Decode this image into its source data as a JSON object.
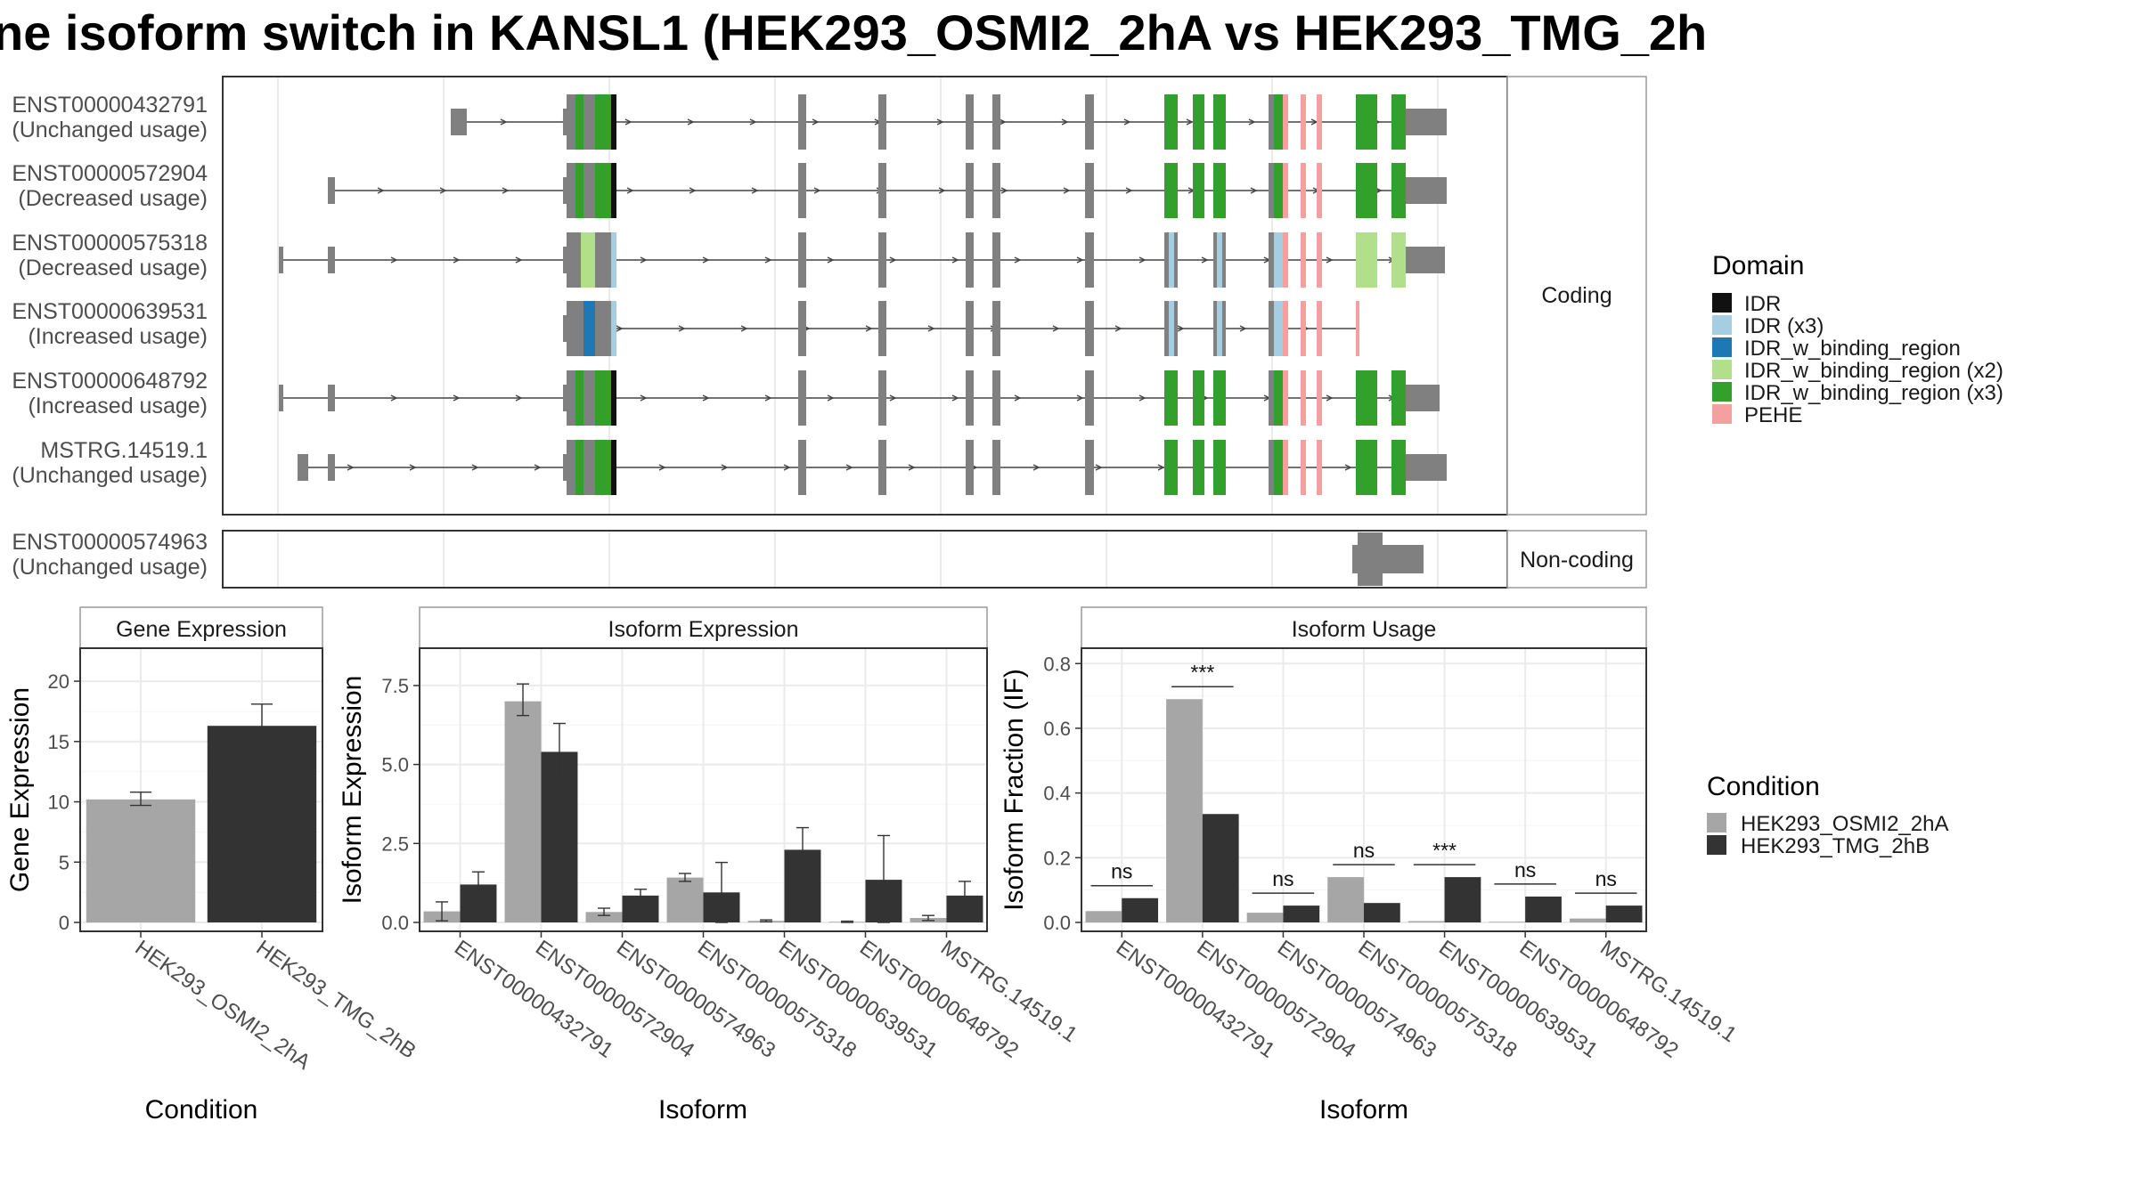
{
  "title": "ne isoform switch in KANSL1 (HEK293_OSMI2_2hA vs HEK293_TMG_2h",
  "colors": {
    "exon": "#808080",
    "IDR": "#111111",
    "IDR (x3)": "#a6cee3",
    "IDR_w_binding_region": "#1f78b4",
    "IDR_w_binding_region (x2)": "#b2df8a",
    "IDR_w_binding_region (x3)": "#33a02c",
    "PEHE": "#f4a0a0",
    "cond1": "#a6a6a6",
    "cond2": "#333333"
  },
  "transcripts": {
    "coding_label": "Coding",
    "noncoding_label": "Non-coding",
    "coding": [
      {
        "id": "ENST00000432791",
        "usage": "(Unchanged usage)"
      },
      {
        "id": "ENST00000572904",
        "usage": "(Decreased usage)"
      },
      {
        "id": "ENST00000575318",
        "usage": "(Decreased usage)"
      },
      {
        "id": "ENST00000639531",
        "usage": "(Increased usage)"
      },
      {
        "id": "ENST00000648792",
        "usage": "(Increased usage)"
      },
      {
        "id": "MSTRG.14519.1",
        "usage": "(Unchanged usage)"
      }
    ],
    "noncoding": [
      {
        "id": "ENST00000574963",
        "usage": "(Unchanged usage)"
      }
    ]
  },
  "legend_domain": {
    "title": "Domain",
    "items": [
      "IDR",
      "IDR (x3)",
      "IDR_w_binding_region",
      "IDR_w_binding_region (x2)",
      "IDR_w_binding_region (x3)",
      "PEHE"
    ]
  },
  "legend_condition": {
    "title": "Condition",
    "items": [
      "HEK293_OSMI2_2hA",
      "HEK293_TMG_2hB"
    ]
  },
  "chart_data": [
    {
      "type": "bar",
      "panel": "Gene Expression",
      "xlabel": "Condition",
      "ylabel": "Gene Expression",
      "categories": [
        "HEK293_OSMI2_2hA",
        "HEK293_TMG_2hB"
      ],
      "values": [
        10.2,
        16.3
      ],
      "errors": [
        [
          9.7,
          10.8
        ],
        [
          14.6,
          18.1
        ]
      ],
      "ylim": [
        0,
        22
      ],
      "ticks": [
        0,
        5,
        10,
        15,
        20
      ],
      "tick_labels": [
        "0",
        "5",
        "10",
        "15",
        "20"
      ]
    },
    {
      "type": "bar",
      "panel": "Isoform Expression",
      "xlabel": "Isoform",
      "ylabel": "Isoform Expression",
      "categories": [
        "ENST00000432791",
        "ENST00000572904",
        "ENST00000574963",
        "ENST00000575318",
        "ENST00000639531",
        "ENST00000648792",
        "MSTRG.14519.1"
      ],
      "series": [
        {
          "name": "HEK293_OSMI2_2hA",
          "values": [
            0.35,
            7.0,
            0.33,
            1.42,
            0.05,
            0.02,
            0.14
          ],
          "errors": [
            [
              0.05,
              0.65
            ],
            [
              6.55,
              7.55
            ],
            [
              0.22,
              0.45
            ],
            [
              1.3,
              1.55
            ],
            [
              0.02,
              0.08
            ],
            [
              0.0,
              0.04
            ],
            [
              0.06,
              0.22
            ]
          ]
        },
        {
          "name": "HEK293_TMG_2hB",
          "values": [
            1.2,
            5.4,
            0.85,
            0.95,
            2.3,
            1.35,
            0.85
          ],
          "errors": [
            [
              0.85,
              1.6
            ],
            [
              4.55,
              6.3
            ],
            [
              0.7,
              1.05
            ],
            [
              0.0,
              1.9
            ],
            [
              1.6,
              3.0
            ],
            [
              0.0,
              2.75
            ],
            [
              0.45,
              1.3
            ]
          ]
        }
      ],
      "ylim": [
        0,
        8.4
      ],
      "ticks": [
        0,
        2.5,
        5,
        7.5
      ],
      "tick_labels": [
        "0.0",
        "2.5",
        "5.0",
        "7.5"
      ]
    },
    {
      "type": "bar",
      "panel": "Isoform Usage",
      "xlabel": "Isoform",
      "ylabel": "Isoform Fraction (IF)",
      "categories": [
        "ENST00000432791",
        "ENST00000572904",
        "ENST00000574963",
        "ENST00000575318",
        "ENST00000639531",
        "ENST00000648792",
        "MSTRG.14519.1"
      ],
      "series": [
        {
          "name": "HEK293_OSMI2_2hA",
          "values": [
            0.035,
            0.69,
            0.03,
            0.14,
            0.004,
            0.002,
            0.012
          ]
        },
        {
          "name": "HEK293_TMG_2hB",
          "values": [
            0.075,
            0.335,
            0.052,
            0.06,
            0.14,
            0.08,
            0.052
          ]
        }
      ],
      "significance": [
        "ns",
        "***",
        "ns",
        "ns",
        "***",
        "ns",
        "ns"
      ],
      "ylim": [
        0,
        0.82
      ],
      "ticks": [
        0,
        0.2,
        0.4,
        0.6,
        0.8
      ],
      "tick_labels": [
        "0.0",
        "0.2",
        "0.4",
        "0.6",
        "0.8"
      ]
    }
  ]
}
